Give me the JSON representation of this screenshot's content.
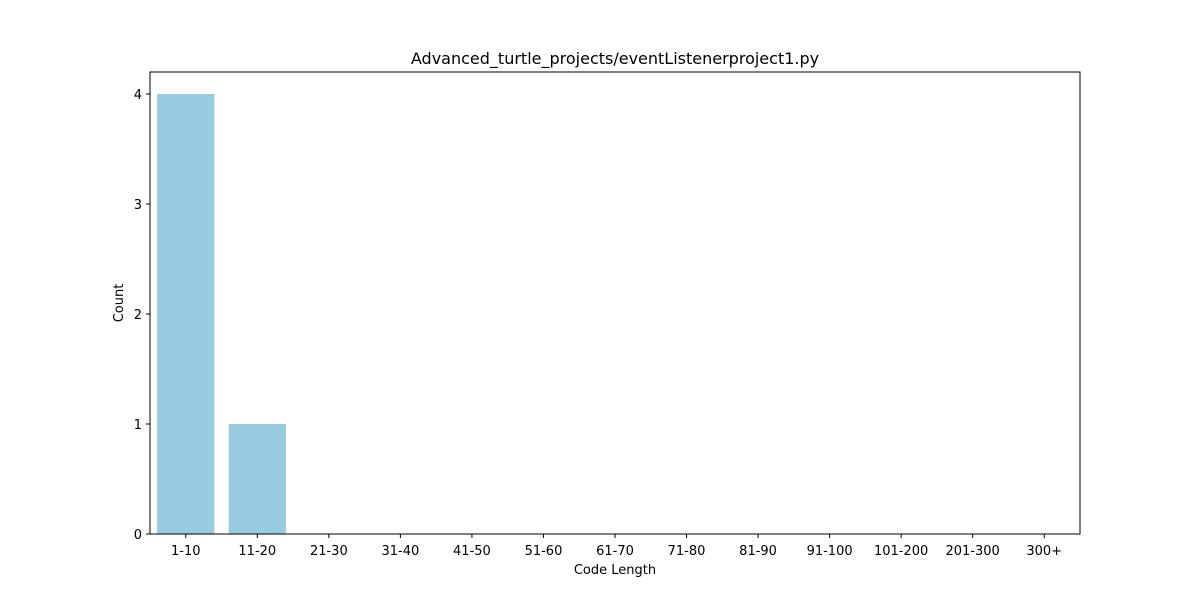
{
  "chart_data": {
    "type": "bar",
    "title": "Advanced_turtle_projects/eventListenerproject1.py",
    "xlabel": "Code Length",
    "ylabel": "Count",
    "categories": [
      "1-10",
      "11-20",
      "21-30",
      "31-40",
      "41-50",
      "51-60",
      "61-70",
      "71-80",
      "81-90",
      "91-100",
      "101-200",
      "201-300",
      "300+"
    ],
    "values": [
      4,
      1,
      0,
      0,
      0,
      0,
      0,
      0,
      0,
      0,
      0,
      0,
      0
    ],
    "ylim": [
      0,
      4.2
    ],
    "yticks": [
      0,
      1,
      2,
      3,
      4
    ],
    "grid": false,
    "bar_color": "#96cbe0"
  }
}
